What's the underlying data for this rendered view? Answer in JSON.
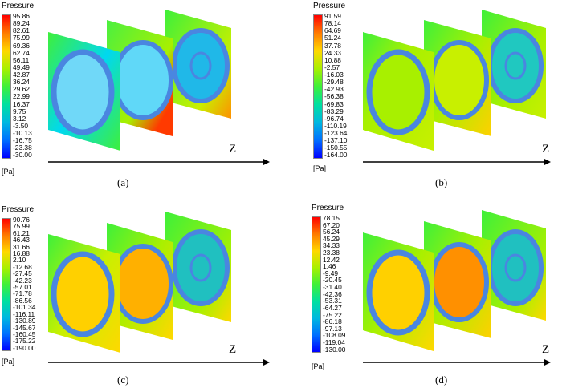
{
  "colors": {
    "scale": [
      "#ff0000",
      "#ff7a00",
      "#ffd800",
      "#a8f000",
      "#3ef03a",
      "#00e0a0",
      "#00b8e0",
      "#0070ff",
      "#0000ff"
    ],
    "ring": "#4a86e0"
  },
  "panels": [
    {
      "title": "Pressure",
      "unit": "[Pa]",
      "caption": "(a)",
      "axis": "Z",
      "ticks": [
        "95.86",
        "89.24",
        "82.61",
        "75.99",
        "69.36",
        "62.74",
        "56.11",
        "49.49",
        "42.87",
        "36.24",
        "29.62",
        "22.99",
        "16.37",
        "9.75",
        "3.12",
        "-3.50",
        "-10.13",
        "-16.75",
        "-23.38",
        "-30.00"
      ]
    },
    {
      "title": "Pressure",
      "unit": "[Pa]",
      "caption": "(b)",
      "axis": "Z",
      "ticks": [
        "91.59",
        "78.14",
        "64.69",
        "51.24",
        "37.78",
        "24.33",
        "10.88",
        "-2.57",
        "-16.03",
        "-29.48",
        "-42.93",
        "-56.38",
        "-69.83",
        "-83.29",
        "-96.74",
        "-110.19",
        "-123.64",
        "-137.10",
        "-150.55",
        "-164.00"
      ]
    },
    {
      "title": "Pressure",
      "unit": "[Pa]",
      "caption": "(c)",
      "axis": "Z",
      "ticks": [
        "90.76",
        "75.99",
        "61.21",
        "46.43",
        "31.66",
        "16.88",
        "2.10",
        "-12.68",
        "-27.45",
        "-42.23",
        "-57.01",
        "-71.78",
        "-86.56",
        "-101.34",
        "-116.11",
        "-130.89",
        "-145.67",
        "-160.45",
        "-175.22",
        "-190.00"
      ]
    },
    {
      "title": "Pressure",
      "unit": "[Pa]",
      "caption": "(d)",
      "axis": "Z",
      "ticks": [
        "78.15",
        "67.20",
        "56.24",
        "45.29",
        "34.33",
        "23.38",
        "12.42",
        "1.46",
        "-9.49",
        "-20.45",
        "-31.40",
        "-42.36",
        "-53.31",
        "-64.27",
        "-75.22",
        "-86.18",
        "-97.13",
        "-108.09",
        "-119.04",
        "-130.00"
      ]
    }
  ]
}
